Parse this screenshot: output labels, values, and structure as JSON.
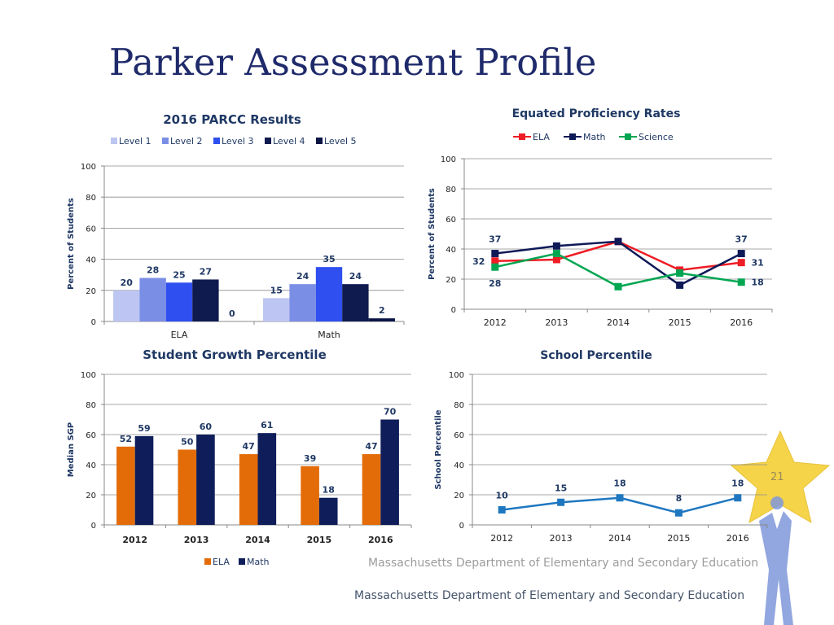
{
  "slide": {
    "title": "Parker Assessment Profile",
    "footer_faint": "Massachusetts Department of Elementary and Secondary Education",
    "footer": "Massachusetts Department of Elementary and Secondary Education",
    "slide_number": "21"
  },
  "colors": {
    "title": "#1f2a6b",
    "chart_text": "#1f3864",
    "level1": "#bdc6f2",
    "level2": "#7b8ee6",
    "level3": "#2f4ff0",
    "level4": "#0f1a4e",
    "level5": "#0b1445",
    "ela_line": "#ee1c25",
    "math_line": "#0e1957",
    "science_line": "#00a651",
    "sgp_ela": "#e36c09",
    "sgp_math": "#0f1e5a",
    "school_line": "#1f77c0",
    "star": "#f5d44a"
  },
  "chart_data": [
    {
      "id": "parcc",
      "type": "bar",
      "title": "2016 PARCC Results",
      "ylabel": "Percent of Students",
      "xlabel": "",
      "ylim": [
        0,
        100
      ],
      "yticks": [
        0,
        20,
        40,
        60,
        80,
        100
      ],
      "categories": [
        "ELA",
        "Math"
      ],
      "series": [
        {
          "name": "Level 1",
          "values": [
            20,
            15
          ],
          "color": "#bdc6f2"
        },
        {
          "name": "Level 2",
          "values": [
            28,
            24
          ],
          "color": "#7b8ee6"
        },
        {
          "name": "Level 3",
          "values": [
            25,
            35
          ],
          "color": "#2f4ff0"
        },
        {
          "name": "Level 4",
          "values": [
            27,
            24
          ],
          "color": "#0f1a4e"
        },
        {
          "name": "Level 5",
          "values": [
            0,
            2
          ],
          "color": "#0b1445"
        }
      ],
      "legend": "top",
      "grid": true
    },
    {
      "id": "equated",
      "type": "line",
      "title": "Equated Proficiency Rates",
      "ylabel": "Percent of Students",
      "xlabel": "",
      "ylim": [
        0,
        100
      ],
      "yticks": [
        0,
        20,
        40,
        60,
        80,
        100
      ],
      "categories": [
        "2012",
        "2013",
        "2014",
        "2015",
        "2016"
      ],
      "series": [
        {
          "name": "ELA",
          "values": [
            32,
            33,
            45,
            26,
            31
          ],
          "color": "#ee1c25",
          "labels": {
            "0": "32",
            "4": "31"
          }
        },
        {
          "name": "Math",
          "values": [
            37,
            42,
            45,
            16,
            37
          ],
          "color": "#0e1957",
          "labels": {
            "0": "37",
            "4": "37"
          }
        },
        {
          "name": "Science",
          "values": [
            28,
            37,
            15,
            24,
            18
          ],
          "color": "#00a651",
          "labels": {
            "0": "28",
            "4": "18"
          }
        }
      ],
      "legend": "top",
      "grid": true
    },
    {
      "id": "sgp",
      "type": "bar",
      "title": "Student Growth Percentile",
      "ylabel": "Median SGP",
      "xlabel": "",
      "ylim": [
        0,
        100
      ],
      "yticks": [
        0,
        20,
        40,
        60,
        80,
        100
      ],
      "categories": [
        "2012",
        "2013",
        "2014",
        "2015",
        "2016"
      ],
      "series": [
        {
          "name": "ELA",
          "values": [
            52,
            50,
            47,
            39,
            47
          ],
          "color": "#e36c09"
        },
        {
          "name": "Math",
          "values": [
            59,
            60,
            61,
            18,
            70
          ],
          "color": "#0f1e5a"
        }
      ],
      "legend": "bottom",
      "grid": true
    },
    {
      "id": "school",
      "type": "line",
      "title": "School Percentile",
      "ylabel": "School Percentile",
      "xlabel": "",
      "ylim": [
        0,
        100
      ],
      "yticks": [
        0,
        20,
        40,
        60,
        80,
        100
      ],
      "categories": [
        "2012",
        "2013",
        "2014",
        "2015",
        "2016"
      ],
      "series": [
        {
          "name": "",
          "values": [
            10,
            15,
            18,
            8,
            18
          ],
          "color": "#1f77c0"
        }
      ],
      "legend": "none",
      "grid": true
    }
  ]
}
